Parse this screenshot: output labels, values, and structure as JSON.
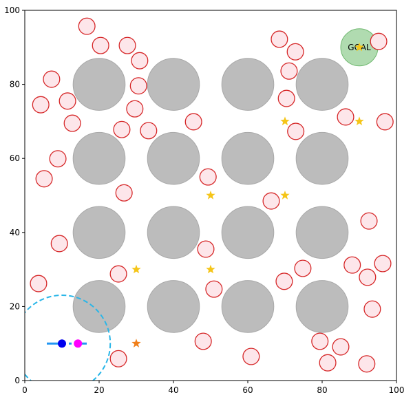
{
  "chart_data": {
    "type": "scatter",
    "xlim": [
      0,
      100
    ],
    "ylim": [
      0,
      100
    ],
    "xticks": [
      0,
      20,
      40,
      60,
      80,
      100
    ],
    "yticks": [
      0,
      20,
      40,
      60,
      80,
      100
    ],
    "obstacles": {
      "color": "#bcbcbc",
      "r": 7,
      "x": [
        20,
        40,
        60,
        80,
        20,
        40,
        60,
        80,
        20,
        40,
        60,
        80,
        20,
        40,
        60,
        80
      ],
      "y": [
        80,
        80,
        80,
        80,
        60,
        60,
        60,
        60,
        40,
        40,
        40,
        40,
        20,
        20,
        20,
        20
      ]
    },
    "pedestrians": {
      "color": "#d62728",
      "r": 2.2,
      "x": [
        16.7,
        20.4,
        27.6,
        30.9,
        30.6,
        7.2,
        4.3,
        11.5,
        12.8,
        29.6,
        26.1,
        33.3,
        45.4,
        8.9,
        5.2,
        26.7,
        49.3,
        9.3,
        48.7,
        25.2,
        50.9,
        3.7,
        68.5,
        72.8,
        71.1,
        70.4,
        72.9,
        86.3,
        96.9,
        95.2,
        66.3,
        92.6,
        74.8,
        69.8,
        88.1,
        92.2,
        96.3,
        93.5,
        48,
        60.9,
        79.4,
        81.5,
        85,
        92,
        25.2
      ],
      "y": [
        95.7,
        90.5,
        90.5,
        86.4,
        79.6,
        81.4,
        74.5,
        75.5,
        69.5,
        73.4,
        67.8,
        67.5,
        69.9,
        59.9,
        54.5,
        50.7,
        55,
        37,
        35.5,
        28.8,
        24.7,
        26.2,
        92.2,
        88.8,
        83.6,
        76.2,
        67.3,
        71.2,
        69.9,
        91.6,
        48.5,
        43.1,
        30.3,
        26.8,
        31.2,
        27.9,
        31.6,
        19.3,
        10.6,
        6.5,
        10.6,
        4.8,
        9.1,
        4.5,
        5.9
      ]
    },
    "waypoints": {
      "color": "#f5c518",
      "x": [
        70,
        90,
        50,
        70,
        30,
        50,
        90
      ],
      "y": [
        70,
        70,
        50,
        50,
        30,
        30,
        90
      ]
    },
    "next_waypoint": {
      "color": "#f07f1a",
      "x": 30,
      "y": 10
    },
    "goal": {
      "label": "GOAL",
      "color": "#8fcc8f",
      "x": 90,
      "y": 90,
      "r": 5
    },
    "robot": {
      "color": "#0000ee",
      "x": 10,
      "y": 10,
      "sensor_range": 13,
      "sensor_color": "#29b6e8"
    },
    "subgoal": {
      "color": "#ff00ff",
      "x": 14.3,
      "y": 10
    }
  }
}
